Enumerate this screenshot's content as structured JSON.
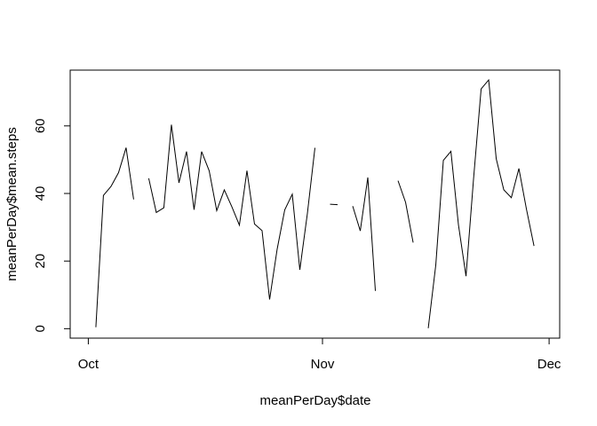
{
  "chart_data": {
    "type": "line",
    "xlabel": "meanPerDay$date",
    "ylabel": "meanPerDay$mean.steps",
    "color": "#000000",
    "x": [
      1,
      2,
      3,
      4,
      5,
      6,
      7,
      8,
      9,
      10,
      11,
      12,
      13,
      14,
      15,
      16,
      17,
      18,
      19,
      20,
      21,
      22,
      23,
      24,
      25,
      26,
      27,
      28,
      29,
      30,
      31,
      32,
      33,
      34,
      35,
      36,
      37,
      38,
      39,
      40,
      41,
      42,
      43,
      44,
      45,
      46,
      47,
      48,
      49,
      50,
      51,
      52,
      53,
      54,
      55,
      56,
      57,
      58,
      59,
      60,
      61
    ],
    "values": [
      null,
      0.44,
      39.42,
      42.07,
      46.16,
      53.54,
      38.25,
      null,
      44.48,
      34.38,
      35.78,
      60.35,
      43.15,
      52.42,
      35.2,
      52.38,
      46.71,
      34.92,
      41.07,
      36.09,
      30.63,
      46.74,
      30.97,
      29.01,
      8.65,
      23.53,
      35.14,
      39.78,
      17.42,
      34.09,
      53.52,
      null,
      36.81,
      36.7,
      null,
      36.25,
      28.94,
      44.73,
      11.18,
      null,
      null,
      43.78,
      37.38,
      25.47,
      null,
      0.14,
      18.89,
      49.79,
      52.47,
      30.7,
      15.53,
      44.4,
      70.93,
      73.59,
      50.27,
      41.09,
      38.76,
      47.38,
      35.36,
      24.47,
      null
    ],
    "xlim": [
      -1.4,
      63.4
    ],
    "xticks": [
      {
        "value": 1,
        "label": "Oct"
      },
      {
        "value": 32,
        "label": "Nov"
      },
      {
        "value": 62,
        "label": "Dec"
      }
    ],
    "ylim": [
      -2.8,
      76.5
    ],
    "yticks": [
      0,
      20,
      40,
      60
    ]
  }
}
